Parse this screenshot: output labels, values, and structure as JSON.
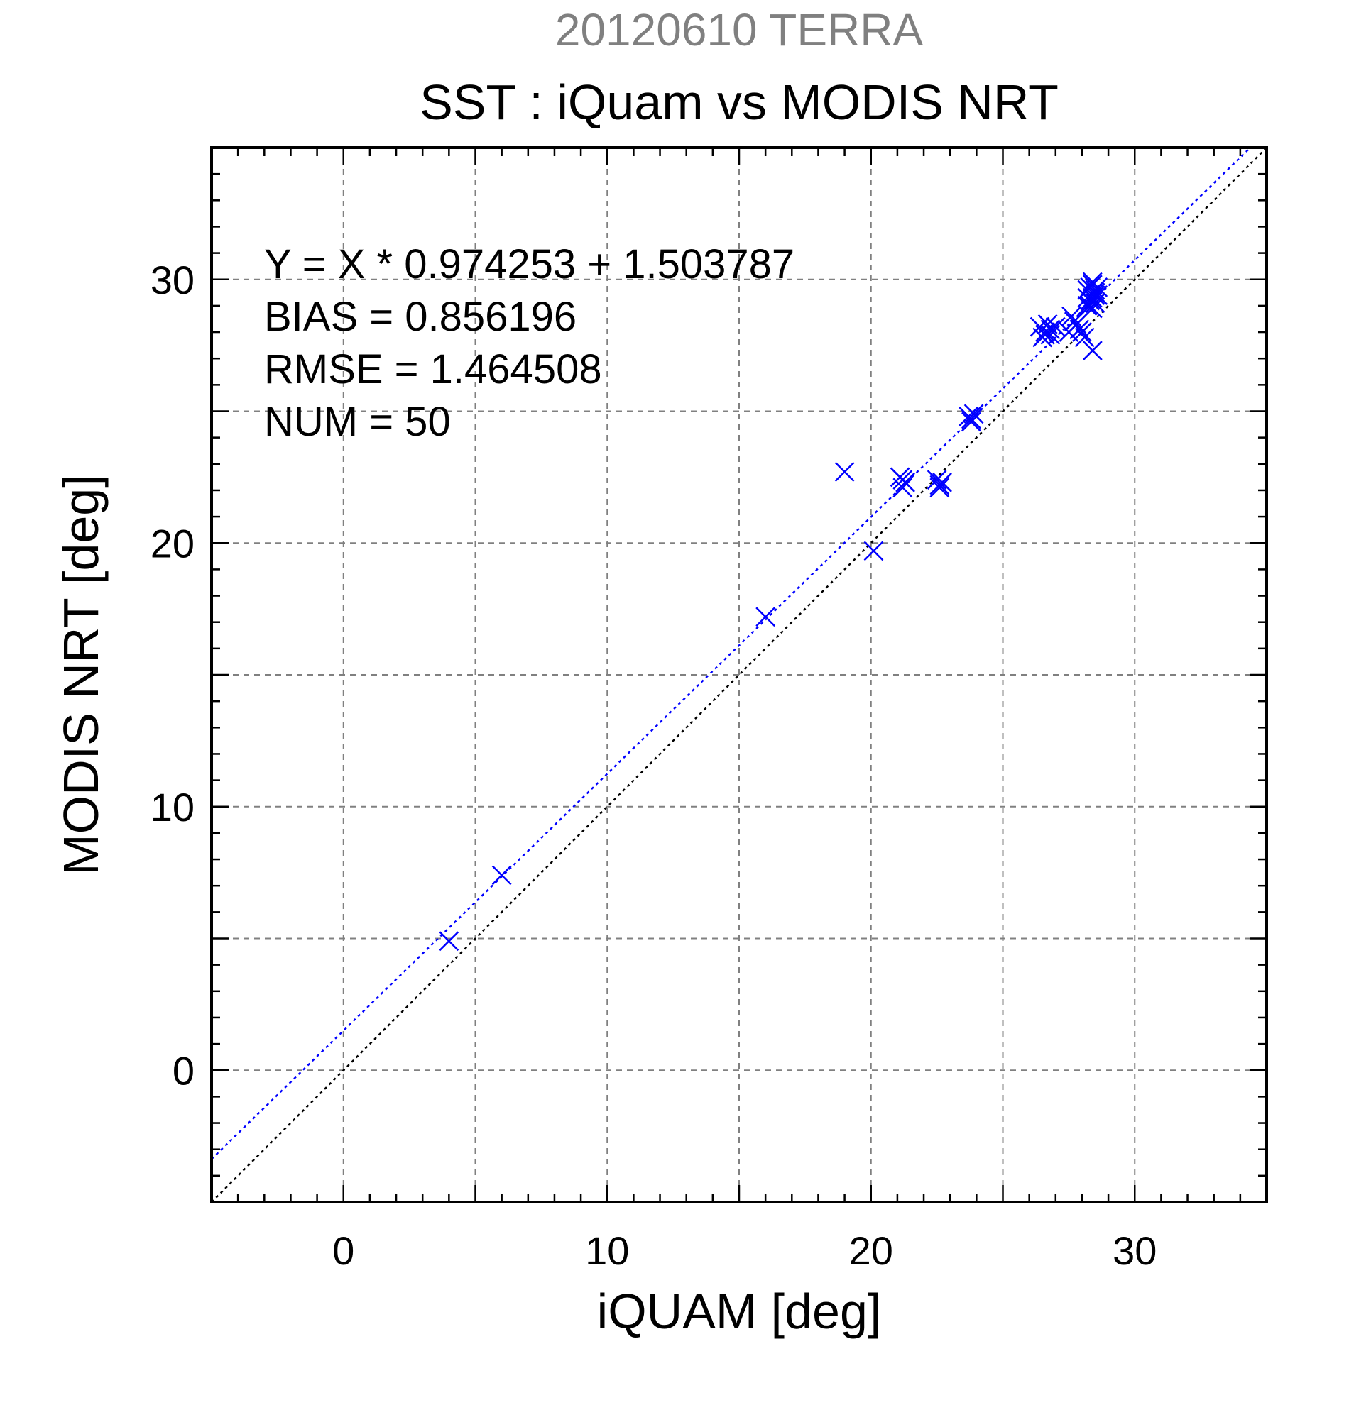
{
  "chart_data": {
    "type": "scatter",
    "title": "SST : iQuam vs MODIS NRT",
    "subtitle": "20120610 TERRA",
    "xlabel": "iQUAM [deg]",
    "ylabel": "MODIS NRT [deg]",
    "xlim": [
      -5,
      35
    ],
    "ylim": [
      -5,
      35
    ],
    "xticks": [
      0,
      10,
      20,
      30
    ],
    "yticks": [
      0,
      10,
      20,
      30
    ],
    "grid_step": 5,
    "minor_step": 1,
    "grid": true,
    "annotations": [
      "Y = X * 0.974253 + 1.503787",
      "BIAS = 0.856196",
      "RMSE = 1.464508",
      "NUM = 50"
    ],
    "fit_line": {
      "slope": 0.974253,
      "intercept": 1.503787
    },
    "identity_line": true,
    "colors": {
      "points": "#0000ff",
      "fit": "#0000ff",
      "identity": "#000000",
      "grid": "#808080",
      "subtitle": "#808080"
    },
    "series": [
      {
        "marker": "x",
        "x": [
          4.0,
          6.0,
          16.0,
          19.0,
          20.1,
          21.1,
          21.2,
          21.3,
          22.5,
          22.6,
          22.7,
          23.7,
          23.8,
          23.9,
          26.4,
          26.5,
          26.6,
          26.7,
          26.8,
          27.0,
          27.5,
          27.6,
          27.8,
          27.9,
          28.0,
          28.1,
          28.2,
          28.3,
          28.4,
          28.5,
          28.6,
          28.2,
          28.4,
          28.3,
          28.5,
          28.6,
          28.4,
          28.2,
          28.5,
          28.3,
          28.4,
          26.6,
          26.8,
          27.7,
          28.4,
          22.6,
          21.2,
          23.8,
          28.5,
          28.2
        ],
        "y": [
          4.9,
          7.4,
          17.2,
          22.7,
          19.7,
          22.5,
          22.1,
          22.3,
          22.4,
          22.1,
          22.3,
          24.8,
          24.7,
          24.9,
          28.2,
          27.8,
          28.0,
          28.3,
          27.9,
          28.2,
          28.0,
          28.6,
          28.3,
          28.1,
          28.0,
          27.8,
          29.3,
          29.0,
          28.9,
          29.5,
          29.7,
          29.6,
          29.8,
          29.2,
          29.6,
          29.4,
          27.3,
          29.0,
          29.1,
          29.7,
          29.3,
          27.9,
          28.1,
          28.4,
          29.9,
          22.2,
          22.4,
          24.6,
          29.4,
          29.0
        ]
      }
    ]
  }
}
